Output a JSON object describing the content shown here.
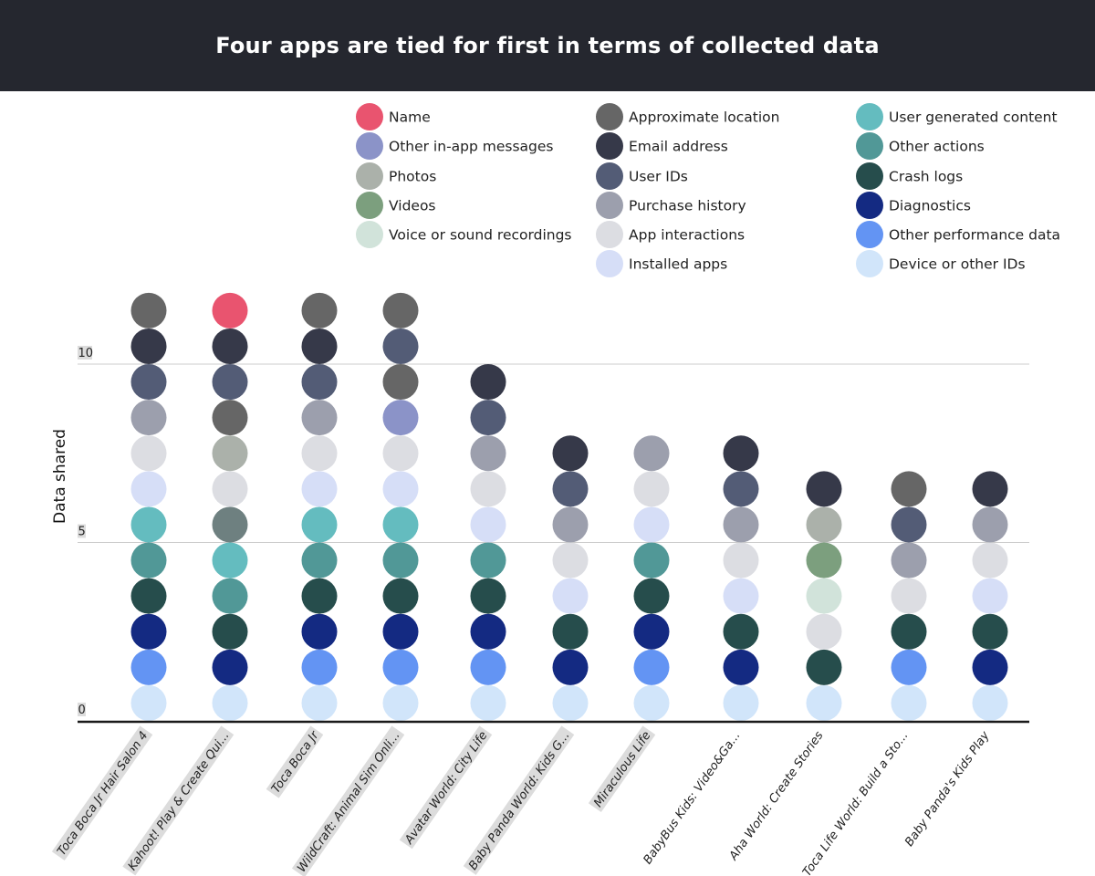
{
  "chart_data": {
    "type": "dot-stack",
    "title": "Four apps are tied for first in terms of collected data",
    "ylabel": "Data shared",
    "ylim": [
      0,
      12
    ],
    "yticks": [
      0,
      5,
      10
    ],
    "grid": true,
    "legend_placement": "top-right",
    "categories_legend": [
      {
        "name": "Name",
        "color": "#e9546f"
      },
      {
        "name": "Other in-app messages",
        "color": "#8b93c8"
      },
      {
        "name": "Photos",
        "color": "#abb1aa"
      },
      {
        "name": "Videos",
        "color": "#7c9f7e"
      },
      {
        "name": "Voice or sound recordings",
        "color": "#d1e3da"
      },
      {
        "name": "Approximate location",
        "color": "#666666"
      },
      {
        "name": "Email address",
        "color": "#363949"
      },
      {
        "name": "User IDs",
        "color": "#535c76"
      },
      {
        "name": "Purchase history",
        "color": "#9c9fad"
      },
      {
        "name": "App interactions",
        "color": "#dcdde2"
      },
      {
        "name": "Installed apps",
        "color": "#d6def7"
      },
      {
        "name": "User generated content",
        "color": "#64bcbf"
      },
      {
        "name": "Other actions",
        "color": "#519897"
      },
      {
        "name": "Crash logs",
        "color": "#264d4c"
      },
      {
        "name": "Diagnostics",
        "color": "#142a82"
      },
      {
        "name": "Other performance data",
        "color": "#6394f3"
      },
      {
        "name": "Device or other IDs",
        "color": "#d1e5fa"
      }
    ],
    "apps": [
      {
        "label": "Toca Boca Jr Hair Salon 4",
        "highlighted": true,
        "value": 12,
        "stack": [
          "Device or other IDs",
          "Other performance data",
          "Diagnostics",
          "Crash logs",
          "Other actions",
          "User generated content",
          "Installed apps",
          "App interactions",
          "Purchase history",
          "User IDs",
          "Email address",
          "Approximate location"
        ]
      },
      {
        "label": "Kahoot! Play & Create Qui...",
        "highlighted": true,
        "value": 12,
        "stack": [
          "Device or other IDs",
          "Diagnostics",
          "Crash logs",
          "Other actions",
          "User generated content",
          "#6e8080",
          "App interactions",
          "Photos",
          "Approximate location",
          "User IDs",
          "Email address",
          "Name"
        ]
      },
      {
        "label": "Toca Boca Jr",
        "highlighted": true,
        "value": 12,
        "stack": [
          "Device or other IDs",
          "Other performance data",
          "Diagnostics",
          "Crash logs",
          "Other actions",
          "User generated content",
          "Installed apps",
          "App interactions",
          "Purchase history",
          "User IDs",
          "Email address",
          "Approximate location"
        ]
      },
      {
        "label": "WildCraft: Animal Sim Onli...",
        "highlighted": true,
        "value": 12,
        "stack": [
          "Device or other IDs",
          "Other performance data",
          "Diagnostics",
          "Crash logs",
          "Other actions",
          "User generated content",
          "Installed apps",
          "App interactions",
          "Other in-app messages",
          "Approximate location",
          "User IDs",
          "Approximate location"
        ]
      },
      {
        "label": "Avatar World: City Life",
        "highlighted": true,
        "value": 10,
        "stack": [
          "Device or other IDs",
          "Other performance data",
          "Diagnostics",
          "Crash logs",
          "Other actions",
          "Installed apps",
          "App interactions",
          "Purchase history",
          "User IDs",
          "Email address"
        ]
      },
      {
        "label": "Baby Panda World: Kids G...",
        "highlighted": true,
        "value": 8,
        "stack": [
          "Device or other IDs",
          "Diagnostics",
          "Crash logs",
          "Installed apps",
          "App interactions",
          "Purchase history",
          "User IDs",
          "Email address"
        ]
      },
      {
        "label": "Miraculous Life",
        "highlighted": true,
        "value": 8,
        "stack": [
          "Device or other IDs",
          "Other performance data",
          "Diagnostics",
          "Crash logs",
          "Other actions",
          "Installed apps",
          "App interactions",
          "Purchase history"
        ]
      },
      {
        "label": "BabyBus Kids: Video&Ga...",
        "highlighted": false,
        "value": 8,
        "stack": [
          "Device or other IDs",
          "Diagnostics",
          "Crash logs",
          "Installed apps",
          "App interactions",
          "Purchase history",
          "User IDs",
          "Email address"
        ]
      },
      {
        "label": "Aha World: Create Stories",
        "highlighted": false,
        "value": 7,
        "stack": [
          "Device or other IDs",
          "Crash logs",
          "App interactions",
          "Voice or sound recordings",
          "Videos",
          "Photos",
          "Email address"
        ]
      },
      {
        "label": "Toca Life World: Build a Sto...",
        "highlighted": false,
        "value": 7,
        "stack": [
          "Device or other IDs",
          "Other performance data",
          "Crash logs",
          "App interactions",
          "Purchase history",
          "User IDs",
          "Approximate location"
        ]
      },
      {
        "label": "Baby Panda's Kids Play",
        "highlighted": false,
        "value": 7,
        "stack": [
          "Device or other IDs",
          "Diagnostics",
          "Crash logs",
          "Installed apps",
          "App interactions",
          "Purchase history",
          "Email address"
        ]
      }
    ]
  }
}
